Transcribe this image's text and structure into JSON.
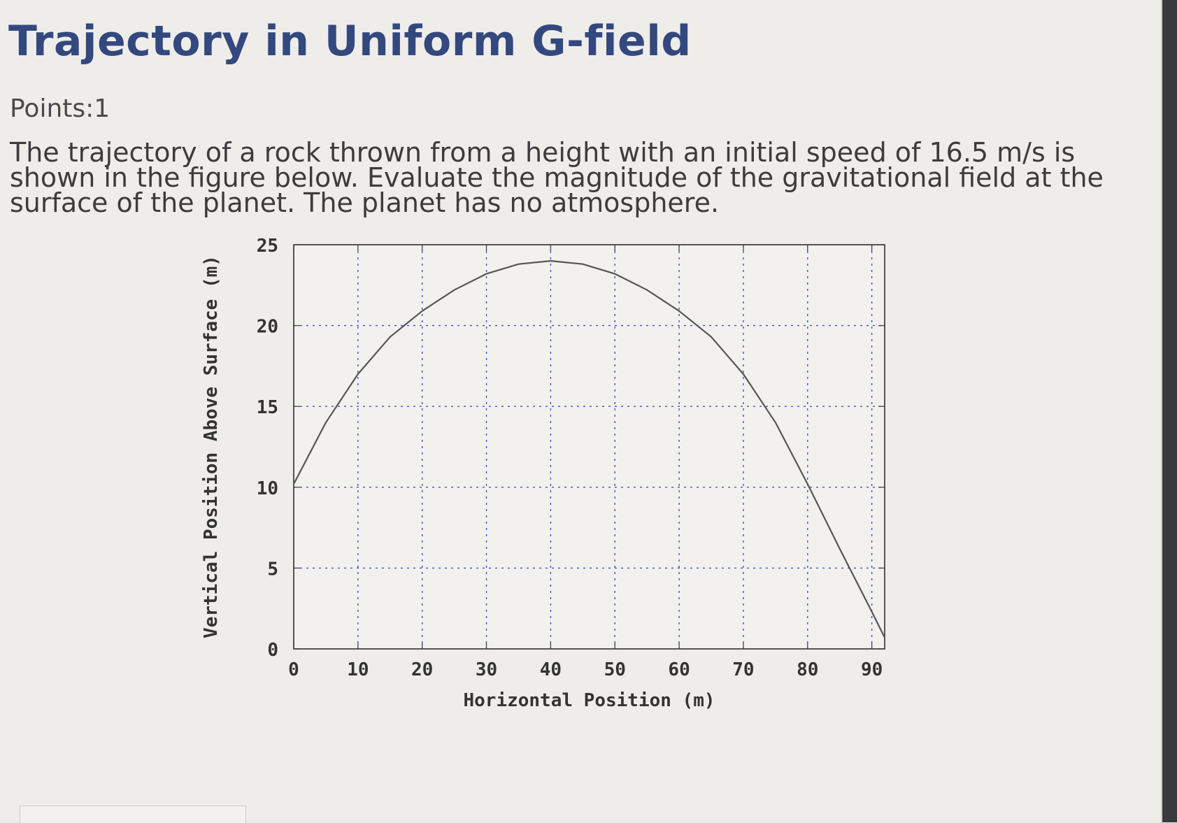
{
  "question": {
    "title": "Trajectory in Uniform G-field",
    "points": "Points:1",
    "text": "The trajectory of a rock thrown from a height with an initial speed of 16.5 m/s is shown in the figure below. Evaluate the magnitude of the gravitational field at the surface of the planet. The planet has no atmosphere."
  },
  "colors": {
    "title": "#33487e",
    "text": "#3c3c3c",
    "curve": "#555555",
    "grid": "#3a52c8",
    "axis_text": "#333333"
  },
  "chart_data": {
    "type": "line",
    "title": "",
    "xlabel": "Horizontal Position (m)",
    "ylabel": "Vertical Position Above Surface (m)",
    "xlim": [
      0,
      92
    ],
    "ylim": [
      0,
      25
    ],
    "xticks": [
      0,
      10,
      20,
      30,
      40,
      50,
      60,
      70,
      80,
      90
    ],
    "yticks": [
      0,
      5,
      10,
      15,
      20,
      25
    ],
    "grid": true,
    "series": [
      {
        "x": [
          0,
          5,
          10,
          15,
          20,
          25,
          30,
          35,
          40,
          45,
          50,
          55,
          60,
          65,
          70,
          75,
          80,
          85,
          90,
          92
        ],
        "y": [
          10.2,
          14.0,
          17.0,
          19.3,
          20.9,
          22.2,
          23.2,
          23.8,
          24.0,
          23.8,
          23.2,
          22.2,
          20.9,
          19.3,
          17.0,
          14.0,
          10.2,
          6.2,
          2.3,
          0.7
        ]
      }
    ]
  }
}
